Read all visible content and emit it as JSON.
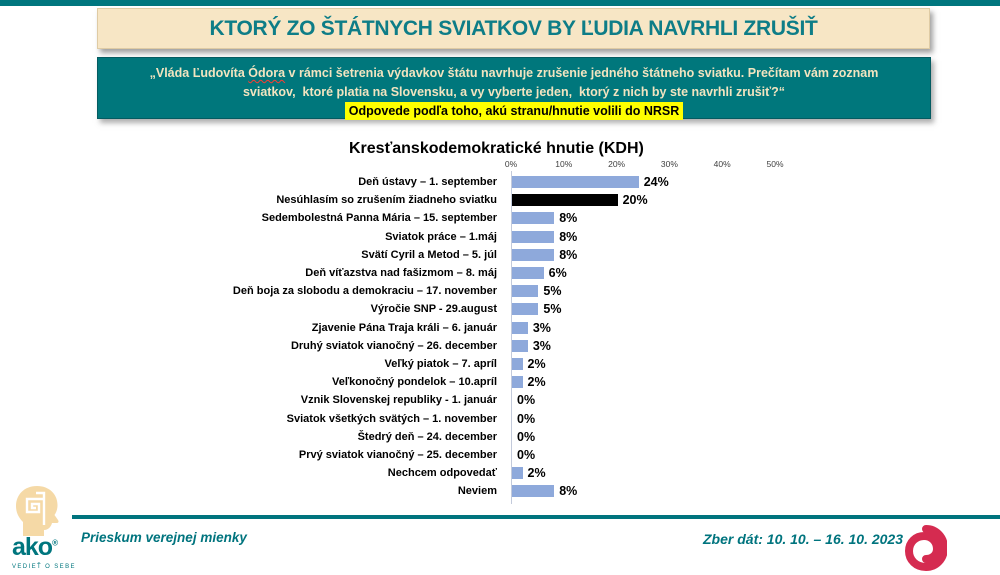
{
  "page_title": "KTORÝ ZO ŠTÁTNYCH SVIATKOV BY ĽUDIA NAVRHLI ZRUŠIŤ",
  "question_box": {
    "line1_prefix": "„Vláda Ľudovíta ",
    "line1_misspelled": "Ódora",
    "line1_suffix": " v rámci šetrenia výdavkov štátu navrhuje zrušenie jedného štátneho sviatku. Prečítam vám zoznam",
    "line2": "sviatkov,  ktoré platia na Slovensku, a vy vyberte jeden,  ktorý z nich by ste navrhli zrušiť?“",
    "highlight": "Odpovede podľa toho, akú stranu/hnutie volili do NRSR"
  },
  "chart_data": {
    "type": "bar",
    "orientation": "horizontal",
    "title": "Kresťanskodemokratické hnutie (KDH)",
    "xlim": [
      0,
      50
    ],
    "axis_ticks": [
      "0%",
      "10%",
      "20%",
      "30%",
      "40%",
      "50%"
    ],
    "grid": false,
    "legend": false,
    "categories": [
      "Deň ústavy – 1. september",
      "Nesúhlasím so zrušením žiadneho sviatku",
      "Sedembolestná Panna Mária – 15. september",
      "Sviatok práce – 1.máj",
      "Svätí Cyril a Metod – 5. júl",
      "Deň víťazstva nad fašizmom – 8. máj",
      "Deň boja za slobodu a demokraciu – 17. november",
      "Výročie SNP - 29.august",
      "Zjavenie Pána Traja králi – 6. január",
      "Druhý sviatok vianočný – 26. december",
      "Veľký piatok – 7. apríl",
      "Veľkonočný pondelok – 10.apríl",
      "Vznik Slovenskej republiky - 1. január",
      "Sviatok všetkých svätých – 1. november",
      "Štedrý deň – 24. december",
      "Prvý sviatok vianočný – 25. december",
      "Nechcem odpovedať",
      "Neviem"
    ],
    "values": [
      24,
      20,
      8,
      8,
      8,
      6,
      5,
      5,
      3,
      3,
      2,
      2,
      0,
      0,
      0,
      0,
      2,
      8
    ],
    "data_labels": [
      "24%",
      "20%",
      "8%",
      "8%",
      "8%",
      "6%",
      "5%",
      "5%",
      "3%",
      "3%",
      "2%",
      "2%",
      "0%",
      "0%",
      "0%",
      "0%",
      "2%",
      "8%"
    ],
    "bar_colors": [
      "#8EA9DB",
      "#000000",
      "#8EA9DB",
      "#8EA9DB",
      "#8EA9DB",
      "#8EA9DB",
      "#8EA9DB",
      "#8EA9DB",
      "#8EA9DB",
      "#8EA9DB",
      "#8EA9DB",
      "#8EA9DB",
      "#8EA9DB",
      "#8EA9DB",
      "#8EA9DB",
      "#8EA9DB",
      "#8EA9DB",
      "#8EA9DB"
    ]
  },
  "footer": {
    "left_text": "Prieskum verejnej mienky",
    "right_text": "Zber dát: 10. 10. – 16. 10. 2023",
    "logo_word": "ako",
    "logo_reg": "®",
    "logo_subtext": "VEDIEŤ O SEBE"
  },
  "colors": {
    "teal": "#00767E",
    "title_text": "#0E7D87",
    "cream_box": "#F7E6C5",
    "quote_text": "#F2E4C0",
    "highlight_yellow": "#FFFF00",
    "bar_blue": "#8EA9DB",
    "bar_black": "#000000",
    "logo_red": "#D52B50",
    "logo_skin": "#F5D9A6"
  }
}
